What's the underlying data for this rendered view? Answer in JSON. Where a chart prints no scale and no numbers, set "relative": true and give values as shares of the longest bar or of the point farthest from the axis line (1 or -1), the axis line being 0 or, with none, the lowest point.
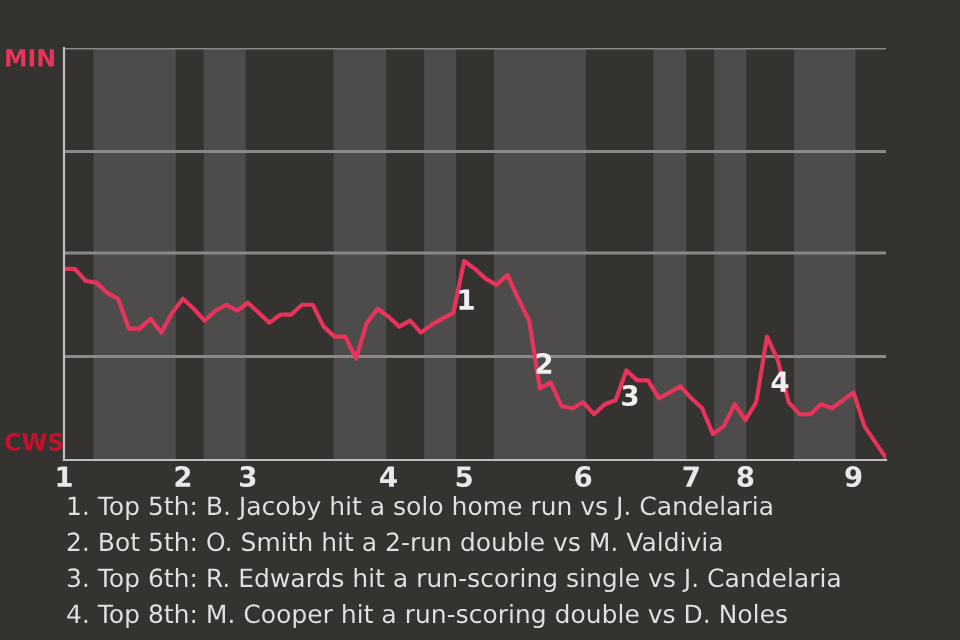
{
  "chart_data": {
    "type": "line",
    "relative": true,
    "categories": [
      "1",
      null,
      null,
      null,
      null,
      null,
      null,
      null,
      null,
      null,
      null,
      "2",
      null,
      null,
      null,
      null,
      null,
      "3",
      null,
      null,
      null,
      null,
      null,
      null,
      null,
      null,
      null,
      null,
      null,
      null,
      "4",
      null,
      null,
      null,
      null,
      null,
      null,
      "5",
      null,
      null,
      null,
      null,
      null,
      null,
      null,
      null,
      null,
      null,
      "6",
      null,
      null,
      null,
      null,
      null,
      null,
      null,
      null,
      null,
      "7",
      null,
      null,
      null,
      null,
      "8",
      null,
      null,
      null,
      null,
      null,
      null,
      null,
      null,
      null,
      "9",
      null,
      null,
      null
    ],
    "series": [
      {
        "color": "#e8335a",
        "values": [
          0.96,
          0.96,
          0.9,
          0.89,
          0.84,
          0.81,
          0.66,
          0.66,
          0.71,
          0.64,
          0.74,
          0.81,
          0.76,
          0.7,
          0.75,
          0.78,
          0.75,
          0.79,
          0.74,
          0.69,
          0.73,
          0.73,
          0.78,
          0.78,
          0.67,
          0.62,
          0.62,
          0.51,
          0.69,
          0.76,
          0.72,
          0.67,
          0.7,
          0.64,
          0.68,
          0.71,
          0.74,
          1,
          0.96,
          0.91,
          0.88,
          0.93,
          0.81,
          0.7,
          0.36,
          0.39,
          0.27,
          0.26,
          0.29,
          0.23,
          0.28,
          0.3,
          0.45,
          0.4,
          0.4,
          0.31,
          0.34,
          0.37,
          0.31,
          0.26,
          0.13,
          0.17,
          0.28,
          0.2,
          0.29,
          0.62,
          0.5,
          0.29,
          0.23,
          0.23,
          0.28,
          0.26,
          0.3,
          0.34,
          0.17,
          0.09,
          0.01
        ]
      }
    ],
    "ref_lines": [
      {
        "axis": "y",
        "value": 0.52,
        "color": "#8a8987"
      },
      {
        "axis": "y",
        "value": 1.04,
        "color": "#8a8987"
      },
      {
        "axis": "y",
        "value": 1.55,
        "color": "#8a8987"
      },
      {
        "axis": "y",
        "value": 2.07,
        "color": "#8a8987"
      }
    ],
    "annotations": [
      "MIN",
      "CWS",
      "1",
      "2",
      "3",
      "4",
      "1. Top 5th: B. Jacoby hit a solo home run vs J. Candelaria",
      "2. Bot 5th: O. Smith hit a 2-run double vs M. Valdivia",
      "3. Top 6th: R. Edwards hit a run-scoring single vs J. Candelaria",
      "4. Top 8th: M. Cooper hit a run-scoring double vs D. Noles"
    ],
    "marker": "none",
    "line_style": "solid"
  }
}
